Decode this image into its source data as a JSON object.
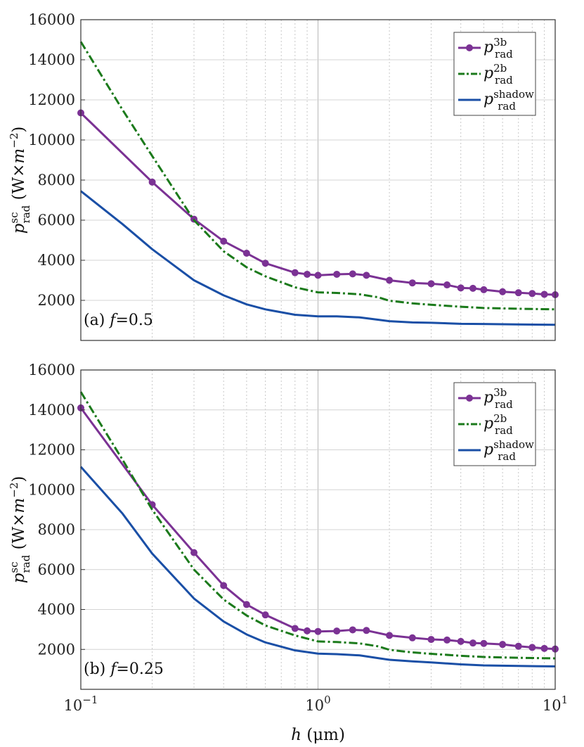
{
  "chart_data": [
    {
      "type": "line",
      "panel_label": "(a)",
      "panel_param": "f",
      "panel_value": "=0.5",
      "xscale": "log",
      "xlim": [
        0.1,
        10
      ],
      "ylim": [
        0,
        16000
      ],
      "yticks": [
        "2000",
        "4000",
        "6000",
        "8000",
        "10000",
        "12000",
        "14000",
        "16000"
      ],
      "ylabel": "p_rad^sc (W×m^−2)",
      "legend_position": "top-right",
      "series": [
        {
          "name": "p_rad^3b",
          "color": "#7b3294",
          "style": "solid-markers",
          "x": [
            0.1,
            0.2,
            0.3,
            0.4,
            0.5,
            0.6,
            0.8,
            0.9,
            1.0,
            1.2,
            1.4,
            1.6,
            2,
            2.5,
            3,
            3.5,
            4,
            4.5,
            5,
            6,
            7,
            8,
            9,
            10
          ],
          "y": [
            11350,
            7900,
            6050,
            4950,
            4350,
            3850,
            3380,
            3300,
            3250,
            3300,
            3320,
            3250,
            3000,
            2870,
            2830,
            2770,
            2620,
            2600,
            2530,
            2430,
            2380,
            2340,
            2300,
            2280
          ]
        },
        {
          "name": "p_rad^2b",
          "color": "#1b7a1b",
          "style": "dashdot",
          "x": [
            0.1,
            0.15,
            0.2,
            0.3,
            0.4,
            0.5,
            0.6,
            0.8,
            1.0,
            1.2,
            1.5,
            1.8,
            2,
            2.5,
            3,
            4,
            5,
            7,
            10
          ],
          "y": [
            14900,
            11500,
            9200,
            6000,
            4450,
            3650,
            3200,
            2650,
            2400,
            2370,
            2300,
            2150,
            1980,
            1850,
            1780,
            1680,
            1620,
            1580,
            1550
          ]
        },
        {
          "name": "p_rad^shadow",
          "color": "#1a4fa6",
          "style": "solid",
          "x": [
            0.1,
            0.15,
            0.2,
            0.3,
            0.4,
            0.5,
            0.6,
            0.8,
            1.0,
            1.2,
            1.5,
            1.8,
            2,
            2.5,
            3,
            4,
            5,
            7,
            10
          ],
          "y": [
            7450,
            5800,
            4550,
            3000,
            2250,
            1800,
            1550,
            1280,
            1200,
            1200,
            1150,
            1030,
            960,
            900,
            880,
            830,
            820,
            800,
            780
          ]
        }
      ]
    },
    {
      "type": "line",
      "panel_label": "(b)",
      "panel_param": "f",
      "panel_value": "=0.25",
      "xscale": "log",
      "xlim": [
        0.1,
        10
      ],
      "ylim": [
        0,
        16000
      ],
      "yticks": [
        "2000",
        "4000",
        "6000",
        "8000",
        "10000",
        "12000",
        "14000",
        "16000"
      ],
      "ylabel": "p_rad^sc (W×m^−2)",
      "xlabel": "h (μm)",
      "xticks": [
        "10",
        "10",
        "10"
      ],
      "xtick_exponents": [
        "−1",
        "0",
        "1"
      ],
      "legend_position": "top-right",
      "series": [
        {
          "name": "p_rad^3b",
          "color": "#7b3294",
          "style": "solid-markers",
          "x": [
            0.1,
            0.2,
            0.3,
            0.4,
            0.5,
            0.6,
            0.8,
            0.9,
            1.0,
            1.2,
            1.4,
            1.6,
            2,
            2.5,
            3,
            3.5,
            4,
            4.5,
            5,
            6,
            7,
            8,
            9,
            10
          ],
          "y": [
            14100,
            9250,
            6850,
            5200,
            4250,
            3730,
            3050,
            2930,
            2900,
            2920,
            2980,
            2950,
            2700,
            2580,
            2500,
            2470,
            2400,
            2320,
            2300,
            2250,
            2160,
            2100,
            2050,
            2020
          ]
        },
        {
          "name": "p_rad^2b",
          "color": "#1b7a1b",
          "style": "dashdot",
          "x": [
            0.1,
            0.15,
            0.2,
            0.3,
            0.4,
            0.5,
            0.6,
            0.8,
            1.0,
            1.2,
            1.5,
            1.8,
            2,
            2.5,
            3,
            4,
            5,
            7,
            10
          ],
          "y": [
            14900,
            11500,
            9000,
            6000,
            4500,
            3700,
            3200,
            2700,
            2400,
            2370,
            2300,
            2150,
            1980,
            1850,
            1780,
            1680,
            1620,
            1580,
            1550
          ]
        },
        {
          "name": "p_rad^shadow",
          "color": "#1a4fa6",
          "style": "solid",
          "x": [
            0.1,
            0.15,
            0.2,
            0.3,
            0.4,
            0.5,
            0.6,
            0.8,
            1.0,
            1.2,
            1.5,
            1.8,
            2,
            2.5,
            3,
            4,
            5,
            7,
            10
          ],
          "y": [
            11150,
            8800,
            6800,
            4550,
            3400,
            2750,
            2350,
            1950,
            1790,
            1760,
            1700,
            1560,
            1480,
            1400,
            1350,
            1250,
            1200,
            1170,
            1150
          ]
        }
      ]
    }
  ]
}
